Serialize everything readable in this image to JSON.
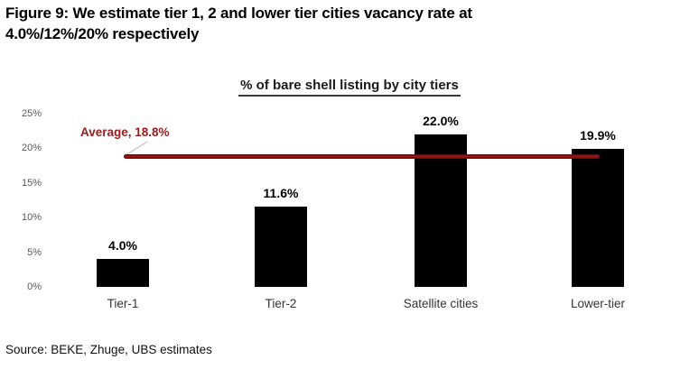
{
  "page": {
    "title_line1": "Figure 9: We estimate tier 1, 2 and lower tier cities vacancy rate at",
    "title_line2": "4.0%/12%/20% respectively",
    "source": "Source: BEKE, Zhuge, UBS estimates"
  },
  "chart_data": {
    "type": "bar",
    "title": "% of bare shell listing by city tiers",
    "categories": [
      "Tier-1",
      "Tier-2",
      "Satellite cities",
      "Lower-tier"
    ],
    "values": [
      4.0,
      11.6,
      22.0,
      19.9
    ],
    "data_labels": [
      "4.0%",
      "11.6%",
      "22.0%",
      "19.9%"
    ],
    "average_value": 18.8,
    "average_label": "Average, 18.8%",
    "ylim": [
      0,
      25
    ],
    "ytick_labels": [
      "25%",
      "20%",
      "15%",
      "10%",
      "5%",
      "0%"
    ],
    "ytick_values": [
      25,
      20,
      15,
      10,
      5,
      0
    ],
    "bar_color": "#000000",
    "average_line_color": "#A81414",
    "average_label_color": "#9B1B1B",
    "grid": false,
    "legend": false
  }
}
